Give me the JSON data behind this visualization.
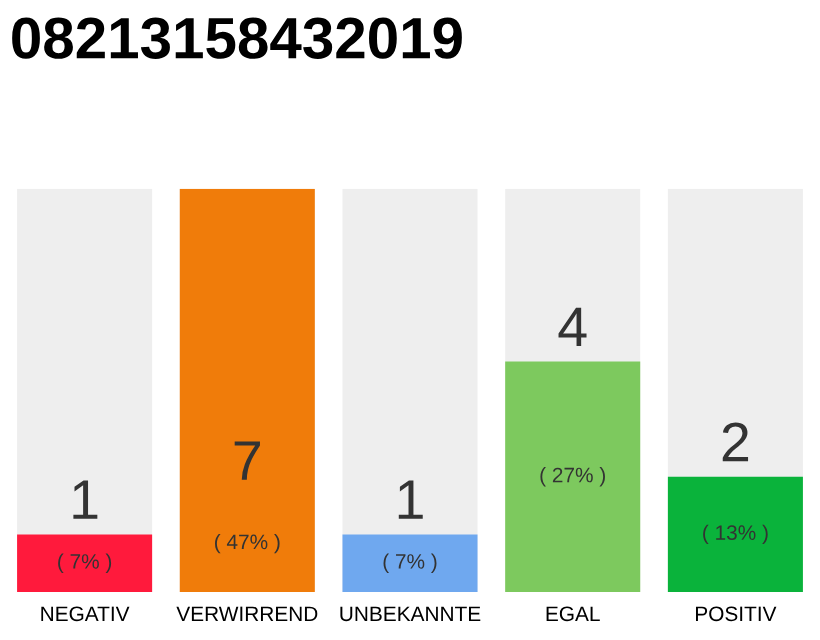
{
  "chart_data": {
    "type": "bar",
    "title": "08213158432019",
    "categories": [
      "NEGATIV",
      "VERWIRREND",
      "UNBEKANNTE",
      "EGAL",
      "POSITIV"
    ],
    "values": [
      1,
      7,
      1,
      4,
      2
    ],
    "colors": [
      "#ff1a3c",
      "#f07c0a",
      "#6fa8ef",
      "#7dc95e",
      "#0ab33b"
    ],
    "value_labels": [
      "1\n( 7% )",
      "7\n( 47% )",
      "1\n( 7% )",
      "4\n( 27% )",
      "2\n( 13% )"
    ],
    "ylim": [
      0,
      7
    ],
    "tick_labels": "x"
  }
}
